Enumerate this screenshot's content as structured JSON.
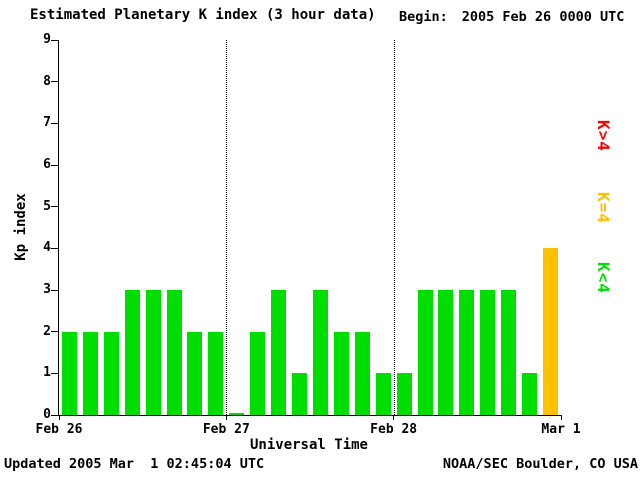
{
  "header": {
    "title": "Estimated Planetary K index (3 hour data)",
    "begin_label": "Begin:",
    "begin_value": "2005 Feb 26 0000 UTC"
  },
  "legend": [
    {
      "label": "K>4",
      "color": "#ff0000"
    },
    {
      "label": "K=4",
      "color": "#ffc000"
    },
    {
      "label": "K<4",
      "color": "#00dd00"
    }
  ],
  "footer": {
    "updated": "Updated 2005 Mar  1 02:45:04 UTC",
    "credit": "NOAA/SEC Boulder, CO USA"
  },
  "chart_data": {
    "type": "bar",
    "title": "Estimated Planetary K index (3 hour data)",
    "xlabel": "Universal Time",
    "ylabel": "Kp index",
    "ylim": [
      0,
      9
    ],
    "y_ticks": [
      0,
      1,
      2,
      3,
      4,
      5,
      6,
      7,
      8,
      9
    ],
    "x_ticks": [
      {
        "label": "Feb 26",
        "pos": 0
      },
      {
        "label": "Feb 27",
        "pos": 0.33333
      },
      {
        "label": "Feb 28",
        "pos": 0.66667
      },
      {
        "label": "Mar 1",
        "pos": 1
      }
    ],
    "day_lines": [
      0.33333,
      0.66667
    ],
    "interval_hours": 3,
    "begin": "2005 Feb 26 0000 UTC",
    "values": [
      2,
      2,
      2,
      3,
      3,
      3,
      2,
      2,
      0,
      2,
      3,
      1,
      3,
      2,
      2,
      1,
      1,
      3,
      3,
      3,
      3,
      3,
      1,
      4
    ],
    "colors": {
      "below4": "#00dd00",
      "equal4": "#ffc000",
      "above4": "#ff0000"
    },
    "grid": false,
    "legend_position": "right"
  }
}
